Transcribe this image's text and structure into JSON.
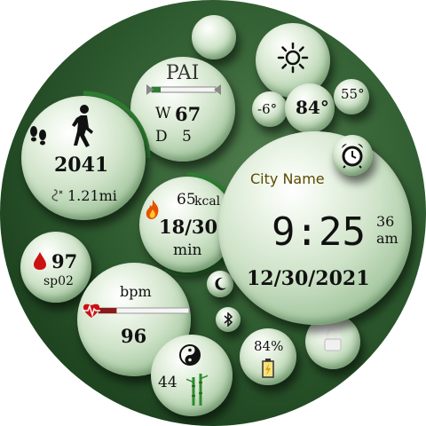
{
  "pai": {
    "title": "PAI",
    "week_label": "W",
    "week_value": "67",
    "day_label": "D",
    "day_value": "5"
  },
  "weather": {
    "low": "-6°",
    "current": "84°",
    "high": "55°",
    "condition_icon": "sun-icon"
  },
  "steps": {
    "count": "2041",
    "distance": "1.21mi"
  },
  "calories": {
    "kcal_value": "65",
    "kcal_unit": "kcal",
    "active_minutes": "18/30",
    "minutes_unit": "min"
  },
  "time": {
    "city": "City Name",
    "hour_min": "9:25",
    "seconds": "36",
    "ampm": "am",
    "date": "12/30/2021"
  },
  "blood_oxygen": {
    "value": "97",
    "label": "sp02"
  },
  "heart_rate": {
    "unit": "bpm",
    "value": "96",
    "fill": 0.2
  },
  "misc": {
    "stress_value": "44",
    "battery": "84%"
  },
  "colors": {
    "bubble": "#d6e8d0",
    "ring": "#2e7d32",
    "bg": "#2f5c30",
    "accent_red": "#cc1111"
  }
}
